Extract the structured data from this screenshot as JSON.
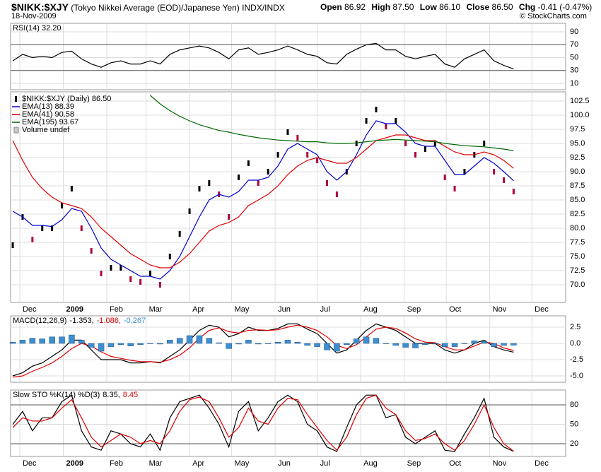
{
  "header": {
    "symbol": "$NIKK:$XJY",
    "description": "(Tokyo Nikkei Average (EOD)/Japanese Yen) INDX/INDX",
    "date": "18-Nov-2009",
    "copyright": "© StockCharts.com",
    "quote": [
      {
        "label": "Open",
        "value": "86.92"
      },
      {
        "label": "High",
        "value": "87.50"
      },
      {
        "label": "Low",
        "value": "86.10"
      },
      {
        "label": "Close",
        "value": "86.50"
      },
      {
        "label": "Chg",
        "value": "-0.41 (-0.47%)"
      }
    ]
  },
  "chart_data": [
    {
      "type": "line",
      "x": [
        -5,
        2,
        9,
        16,
        23,
        30,
        37,
        44,
        51,
        58,
        65,
        72,
        79,
        86,
        93,
        100,
        107,
        114,
        121,
        128,
        135,
        142,
        149,
        156,
        163,
        170,
        177,
        184,
        191,
        198,
        205,
        212,
        219,
        226,
        233,
        240,
        247,
        254,
        261,
        268,
        275,
        282,
        289,
        296,
        303,
        310,
        317,
        324,
        331,
        338,
        345,
        352
      ],
      "xlim": [
        -6.55,
        389.1
      ],
      "ylim": [
        0.14,
        103.15
      ],
      "yticks": [
        10,
        30,
        50,
        70,
        90
      ],
      "bands": [
        30,
        70
      ],
      "grid": true,
      "series": [
        {
          "name": "RSI(14) 32.20",
          "color": "#000000",
          "style": "line",
          "values": [
            45,
            55,
            50,
            52,
            50,
            58,
            60,
            48,
            40,
            35,
            42,
            45,
            40,
            40,
            45,
            40,
            55,
            62,
            65,
            68,
            65,
            58,
            48,
            62,
            65,
            55,
            58,
            62,
            68,
            62,
            55,
            52,
            42,
            40,
            55,
            63,
            70,
            72,
            62,
            62,
            52,
            48,
            52,
            55,
            40,
            35,
            48,
            55,
            62,
            45,
            38,
            32.2
          ]
        }
      ]
    },
    {
      "type": "line",
      "x": [
        -5,
        2,
        9,
        16,
        23,
        30,
        37,
        44,
        51,
        58,
        65,
        72,
        79,
        86,
        93,
        100,
        107,
        114,
        121,
        128,
        135,
        142,
        149,
        156,
        163,
        170,
        177,
        184,
        191,
        198,
        205,
        212,
        219,
        226,
        233,
        240,
        247,
        254,
        261,
        268,
        275,
        282,
        289,
        296,
        303,
        310,
        317,
        324,
        331,
        338,
        345,
        352
      ],
      "xlim": [
        -6.55,
        389.1
      ],
      "ylim": [
        66.875,
        104.125
      ],
      "grid": true,
      "yticks": [
        {
          "value": 70,
          "label": "70.0"
        },
        72.5,
        {
          "value": 75,
          "label": "75.0"
        },
        77.5,
        {
          "value": 80,
          "label": "80.0"
        },
        82.5,
        {
          "value": 85,
          "label": "85.0"
        },
        87.5,
        {
          "value": 90,
          "label": "90.0"
        },
        92.5,
        {
          "value": 95,
          "label": "95.0"
        },
        97.5,
        {
          "value": 100,
          "label": "100.0"
        },
        102.5
      ],
      "xticks": [
        {
          "value": 0,
          "label": "Dec"
        },
        {
          "value": 31,
          "label": "2009"
        },
        {
          "value": 62,
          "label": "Feb"
        },
        {
          "value": 90,
          "label": "Mar"
        },
        {
          "value": 121,
          "label": "Apr"
        },
        {
          "value": 151,
          "label": "May"
        },
        {
          "value": 182,
          "label": "Jun"
        },
        {
          "value": 212,
          "label": "Jul"
        },
        {
          "value": 243,
          "label": "Aug"
        },
        {
          "value": 274,
          "label": "Sep"
        },
        {
          "value": 304,
          "label": "Oct"
        },
        {
          "value": 335,
          "label": "Nov"
        },
        {
          "value": 365,
          "label": "Dec"
        }
      ],
      "volume_label": "Volume undef",
      "series": [
        {
          "name": "$NIKK:$XJY (Daily) 86.50",
          "color": "#000000",
          "down_color": "#b0003a",
          "style": "candle",
          "values": [
            77,
            82,
            78,
            80,
            80,
            84,
            87,
            80,
            76,
            72,
            73,
            73,
            71,
            70.5,
            72,
            70,
            75,
            79,
            83,
            87,
            88,
            86,
            82,
            89,
            91.5,
            88,
            90,
            93,
            97,
            96,
            93,
            92,
            88,
            86,
            90,
            95,
            99,
            101,
            98,
            99,
            95,
            93,
            94,
            95,
            89,
            87,
            90,
            93,
            95,
            90,
            88.5,
            86.5
          ]
        },
        {
          "name": "EMA(13) 88.39",
          "color": "#0000cc",
          "style": "line",
          "values": [
            83,
            82,
            80.5,
            80.5,
            80.3,
            81.5,
            83.5,
            83,
            80,
            76.5,
            74.5,
            73.5,
            72.5,
            71.5,
            71.5,
            71,
            72.5,
            75,
            78.5,
            82,
            85,
            86,
            85.5,
            86.5,
            88.5,
            88.5,
            89,
            91,
            94,
            95,
            94,
            93,
            90,
            88.5,
            90,
            93,
            96.5,
            99,
            98.5,
            98.5,
            97,
            95,
            94.5,
            94.5,
            92,
            89.5,
            89.5,
            91,
            92.5,
            91.5,
            90,
            88.4
          ]
        },
        {
          "name": "EMA(41) 90.58",
          "color": "#dd0000",
          "style": "line",
          "values": [
            95.5,
            92,
            89,
            87,
            85.5,
            84.5,
            84,
            83.5,
            82,
            80,
            78.5,
            77,
            75.5,
            74.5,
            73.5,
            73,
            73,
            74,
            75.5,
            77.5,
            79.5,
            80.5,
            81,
            82,
            84,
            85,
            86,
            87.5,
            89.5,
            91,
            92,
            92.5,
            92,
            91.5,
            91.5,
            92.5,
            94,
            95.5,
            96,
            96.5,
            96.5,
            96,
            95.5,
            95.5,
            94.5,
            93.5,
            93,
            93,
            93.5,
            93,
            92,
            90.6
          ]
        },
        {
          "name": "EMA(195) 93.67",
          "color": "#006600",
          "style": "line",
          "values": [
            null,
            null,
            null,
            null,
            null,
            null,
            null,
            null,
            null,
            null,
            null,
            null,
            null,
            null,
            103.5,
            102,
            100.8,
            99.8,
            99,
            98.3,
            97.8,
            97.3,
            97,
            96.6,
            96.3,
            96,
            95.8,
            95.6,
            95.5,
            95.4,
            95.3,
            95.3,
            95.1,
            95,
            95,
            95.1,
            95.3,
            95.5,
            95.6,
            95.7,
            95.6,
            95.5,
            95.4,
            95.3,
            95,
            94.8,
            94.6,
            94.5,
            94.4,
            94.2,
            94,
            93.7
          ]
        }
      ]
    },
    {
      "type": "line",
      "title": "MACD(12,26,9)",
      "x": [
        -5,
        2,
        9,
        16,
        23,
        30,
        37,
        44,
        51,
        58,
        65,
        72,
        79,
        86,
        93,
        100,
        107,
        114,
        121,
        128,
        135,
        142,
        149,
        156,
        163,
        170,
        177,
        184,
        191,
        198,
        205,
        212,
        219,
        226,
        233,
        240,
        247,
        254,
        261,
        268,
        275,
        282,
        289,
        296,
        303,
        310,
        317,
        324,
        331,
        338,
        345,
        352
      ],
      "xlim": [
        -6.55,
        389.1
      ],
      "ylim": [
        -5.98,
        4.24
      ],
      "grid": true,
      "yticks": [
        {
          "value": -5,
          "label": "-5.0"
        },
        -2.5,
        {
          "value": 0,
          "label": "0.0"
        },
        2.5
      ],
      "series": [
        {
          "name": "-1.353,",
          "color": "#000000",
          "style": "line",
          "values": [
            -5,
            -4.5,
            -3.5,
            -3,
            -2,
            -1,
            0.5,
            0.5,
            -1,
            -2.5,
            -2.5,
            -2.5,
            -3,
            -3,
            -2.8,
            -3,
            -2,
            -1,
            0.5,
            2,
            2.8,
            2.5,
            1,
            1.5,
            2.5,
            2,
            2,
            2.3,
            3,
            3,
            2.2,
            1.5,
            0,
            -1.5,
            -1,
            0.5,
            2,
            3,
            2.5,
            2,
            1,
            0,
            0,
            0,
            -1,
            -1.5,
            -1,
            0,
            0.5,
            -0.5,
            -1,
            -1.35
          ]
        },
        {
          "name": "-1.086,",
          "color": "#dd0000",
          "style": "line",
          "values": [
            -5.2,
            -5,
            -4.3,
            -3.7,
            -3,
            -2,
            -0.8,
            0,
            -0.4,
            -1.3,
            -2,
            -2.3,
            -2.6,
            -2.8,
            -2.8,
            -2.9,
            -2.5,
            -1.8,
            -0.7,
            0.8,
            2,
            2.4,
            1.8,
            1.6,
            2,
            2.1,
            2,
            2.1,
            2.5,
            2.8,
            2.5,
            2,
            1,
            -0.3,
            -0.8,
            -0.2,
            1,
            2.2,
            2.5,
            2.3,
            1.6,
            0.7,
            0.2,
            0.1,
            -0.5,
            -1,
            -1,
            -0.4,
            0.2,
            0,
            -0.7,
            -1.09
          ]
        },
        {
          "name": "-0.267",
          "color": "#3d8fd1",
          "style": "histogram",
          "values": [
            0.2,
            0.5,
            0.8,
            0.7,
            1,
            1,
            1.3,
            0.5,
            -0.6,
            -1.2,
            -0.5,
            -0.2,
            -0.4,
            -0.2,
            0,
            -0.1,
            0.5,
            0.8,
            1.2,
            1.2,
            0.8,
            0.1,
            -0.8,
            -0.1,
            0.5,
            -0.1,
            0,
            0.2,
            0.5,
            0.2,
            -0.3,
            -0.5,
            -1,
            -1.2,
            -0.2,
            0.7,
            1,
            0.8,
            0,
            -0.3,
            -0.6,
            -0.7,
            -0.2,
            -0.1,
            -0.5,
            -0.5,
            0,
            0.4,
            0.3,
            -0.5,
            -0.3,
            -0.267
          ]
        }
      ]
    },
    {
      "type": "line",
      "title": "Slow STO %K(14) %D(3)",
      "x": [
        -5,
        2,
        9,
        16,
        23,
        30,
        37,
        44,
        51,
        58,
        65,
        72,
        79,
        86,
        93,
        100,
        107,
        114,
        121,
        128,
        135,
        142,
        149,
        156,
        163,
        170,
        177,
        184,
        191,
        198,
        205,
        212,
        219,
        226,
        233,
        240,
        247,
        254,
        261,
        268,
        275,
        282,
        289,
        296,
        303,
        310,
        317,
        324,
        331,
        338,
        345,
        352
      ],
      "xlim": [
        -6.55,
        389.1
      ],
      "ylim": [
        0.36,
        102.9
      ],
      "grid": true,
      "yticks": [
        20,
        50,
        80
      ],
      "bands": [
        20,
        80
      ],
      "xticks": [
        {
          "value": 0,
          "label": "Dec"
        },
        {
          "value": 31,
          "label": "2009"
        },
        {
          "value": 62,
          "label": "Feb"
        },
        {
          "value": 90,
          "label": "Mar"
        },
        {
          "value": 121,
          "label": "Apr"
        },
        {
          "value": 151,
          "label": "May"
        },
        {
          "value": 182,
          "label": "Jun"
        },
        {
          "value": 212,
          "label": "Jul"
        },
        {
          "value": 243,
          "label": "Aug"
        },
        {
          "value": 274,
          "label": "Sep"
        },
        {
          "value": 304,
          "label": "Oct"
        },
        {
          "value": 335,
          "label": "Nov"
        },
        {
          "value": 365,
          "label": "Dec"
        }
      ],
      "series": [
        {
          "name": "8.35,",
          "color": "#000000",
          "style": "line",
          "values": [
            50,
            70,
            40,
            60,
            60,
            85,
            95,
            40,
            15,
            10,
            40,
            35,
            20,
            15,
            35,
            10,
            60,
            85,
            90,
            95,
            75,
            50,
            15,
            70,
            85,
            40,
            60,
            85,
            95,
            85,
            50,
            40,
            15,
            8,
            45,
            80,
            95,
            95,
            60,
            65,
            30,
            20,
            30,
            40,
            10,
            8,
            35,
            60,
            90,
            30,
            15,
            8.35
          ]
        },
        {
          "name": "8.45",
          "color": "#dd0000",
          "style": "line",
          "values": [
            45,
            60,
            55,
            55,
            60,
            75,
            88,
            60,
            30,
            15,
            25,
            35,
            30,
            20,
            25,
            20,
            40,
            70,
            88,
            92,
            85,
            60,
            30,
            45,
            75,
            55,
            50,
            75,
            90,
            88,
            65,
            45,
            25,
            10,
            30,
            65,
            90,
            95,
            75,
            65,
            40,
            25,
            28,
            35,
            20,
            10,
            25,
            50,
            80,
            45,
            20,
            8.45
          ]
        }
      ]
    }
  ]
}
